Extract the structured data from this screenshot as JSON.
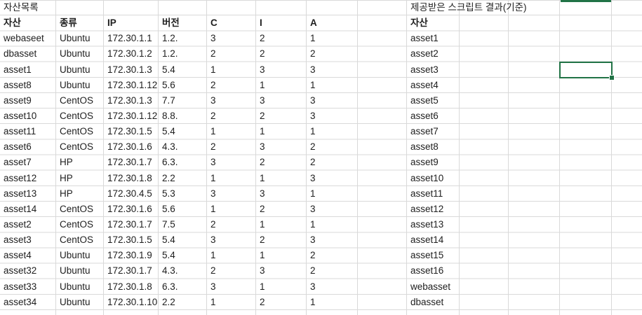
{
  "colors": {
    "background": "#ffffff",
    "gridline": "#d9d9d9",
    "text": "#1e1e1e",
    "selection_green": "#217346"
  },
  "left_table": {
    "title": "자산목록",
    "columns": [
      "자산",
      "종류",
      "IP",
      "버전",
      "C",
      "I",
      "A"
    ],
    "rows": [
      [
        "webaseet",
        "Ubuntu",
        "172.30.1.1",
        "1.2.",
        "3",
        "2",
        "1"
      ],
      [
        "dbasset",
        "Ubuntu",
        "172.30.1.2",
        "1.2.",
        "2",
        "2",
        "2"
      ],
      [
        "asset1",
        "Ubuntu",
        "172.30.1.3",
        "5.4",
        "1",
        "3",
        "3"
      ],
      [
        "asset8",
        "Ubuntu",
        "172.30.1.12",
        "5.6",
        "2",
        "1",
        "1"
      ],
      [
        "asset9",
        "CentOS",
        "172.30.1.3",
        "7.7",
        "3",
        "3",
        "3"
      ],
      [
        "asset10",
        "CentOS",
        "172.30.1.12",
        "8.8.",
        "2",
        "2",
        "3"
      ],
      [
        "asset11",
        "CentOS",
        "172.30.1.5",
        "5.4",
        "1",
        "1",
        "1"
      ],
      [
        "asset6",
        "CentOS",
        "172.30.1.6",
        "4.3.",
        "2",
        "3",
        "2"
      ],
      [
        "asset7",
        "HP",
        "172.30.1.7",
        "6.3.",
        "3",
        "2",
        "2"
      ],
      [
        "asset12",
        "HP",
        "172.30.1.8",
        "2.2",
        "1",
        "1",
        "3"
      ],
      [
        "asset13",
        "HP",
        "172.30.4.5",
        "5.3",
        "3",
        "3",
        "1"
      ],
      [
        "asset14",
        "CentOS",
        "172.30.1.6",
        "5.6",
        "1",
        "2",
        "3"
      ],
      [
        "asset2",
        "CentOS",
        "172.30.1.7",
        "7.5",
        "2",
        "1",
        "1"
      ],
      [
        "asset3",
        "CentOS",
        "172.30.1.5",
        "5.4",
        "3",
        "2",
        "3"
      ],
      [
        "asset4",
        "Ubuntu",
        "172.30.1.9",
        "5.4",
        "1",
        "1",
        "2"
      ],
      [
        "asset32",
        "Ubuntu",
        "172.30.1.7",
        "4.3.",
        "2",
        "3",
        "2"
      ],
      [
        "asset33",
        "Ubuntu",
        "172.30.1.8",
        "6.3.",
        "3",
        "1",
        "3"
      ],
      [
        "asset34",
        "Ubuntu",
        "172.30.1.10",
        "2.2",
        "1",
        "2",
        "1"
      ]
    ]
  },
  "right_table": {
    "title": "제공받은 스크립트 결과(기준)",
    "columns": [
      "자산"
    ],
    "rows": [
      "asset1",
      "asset2",
      "asset3",
      "asset4",
      "asset5",
      "asset6",
      "asset7",
      "asset8",
      "asset9",
      "asset10",
      "asset11",
      "asset12",
      "asset13",
      "asset14",
      "asset15",
      "asset16",
      "webasset",
      "dbasset"
    ]
  }
}
